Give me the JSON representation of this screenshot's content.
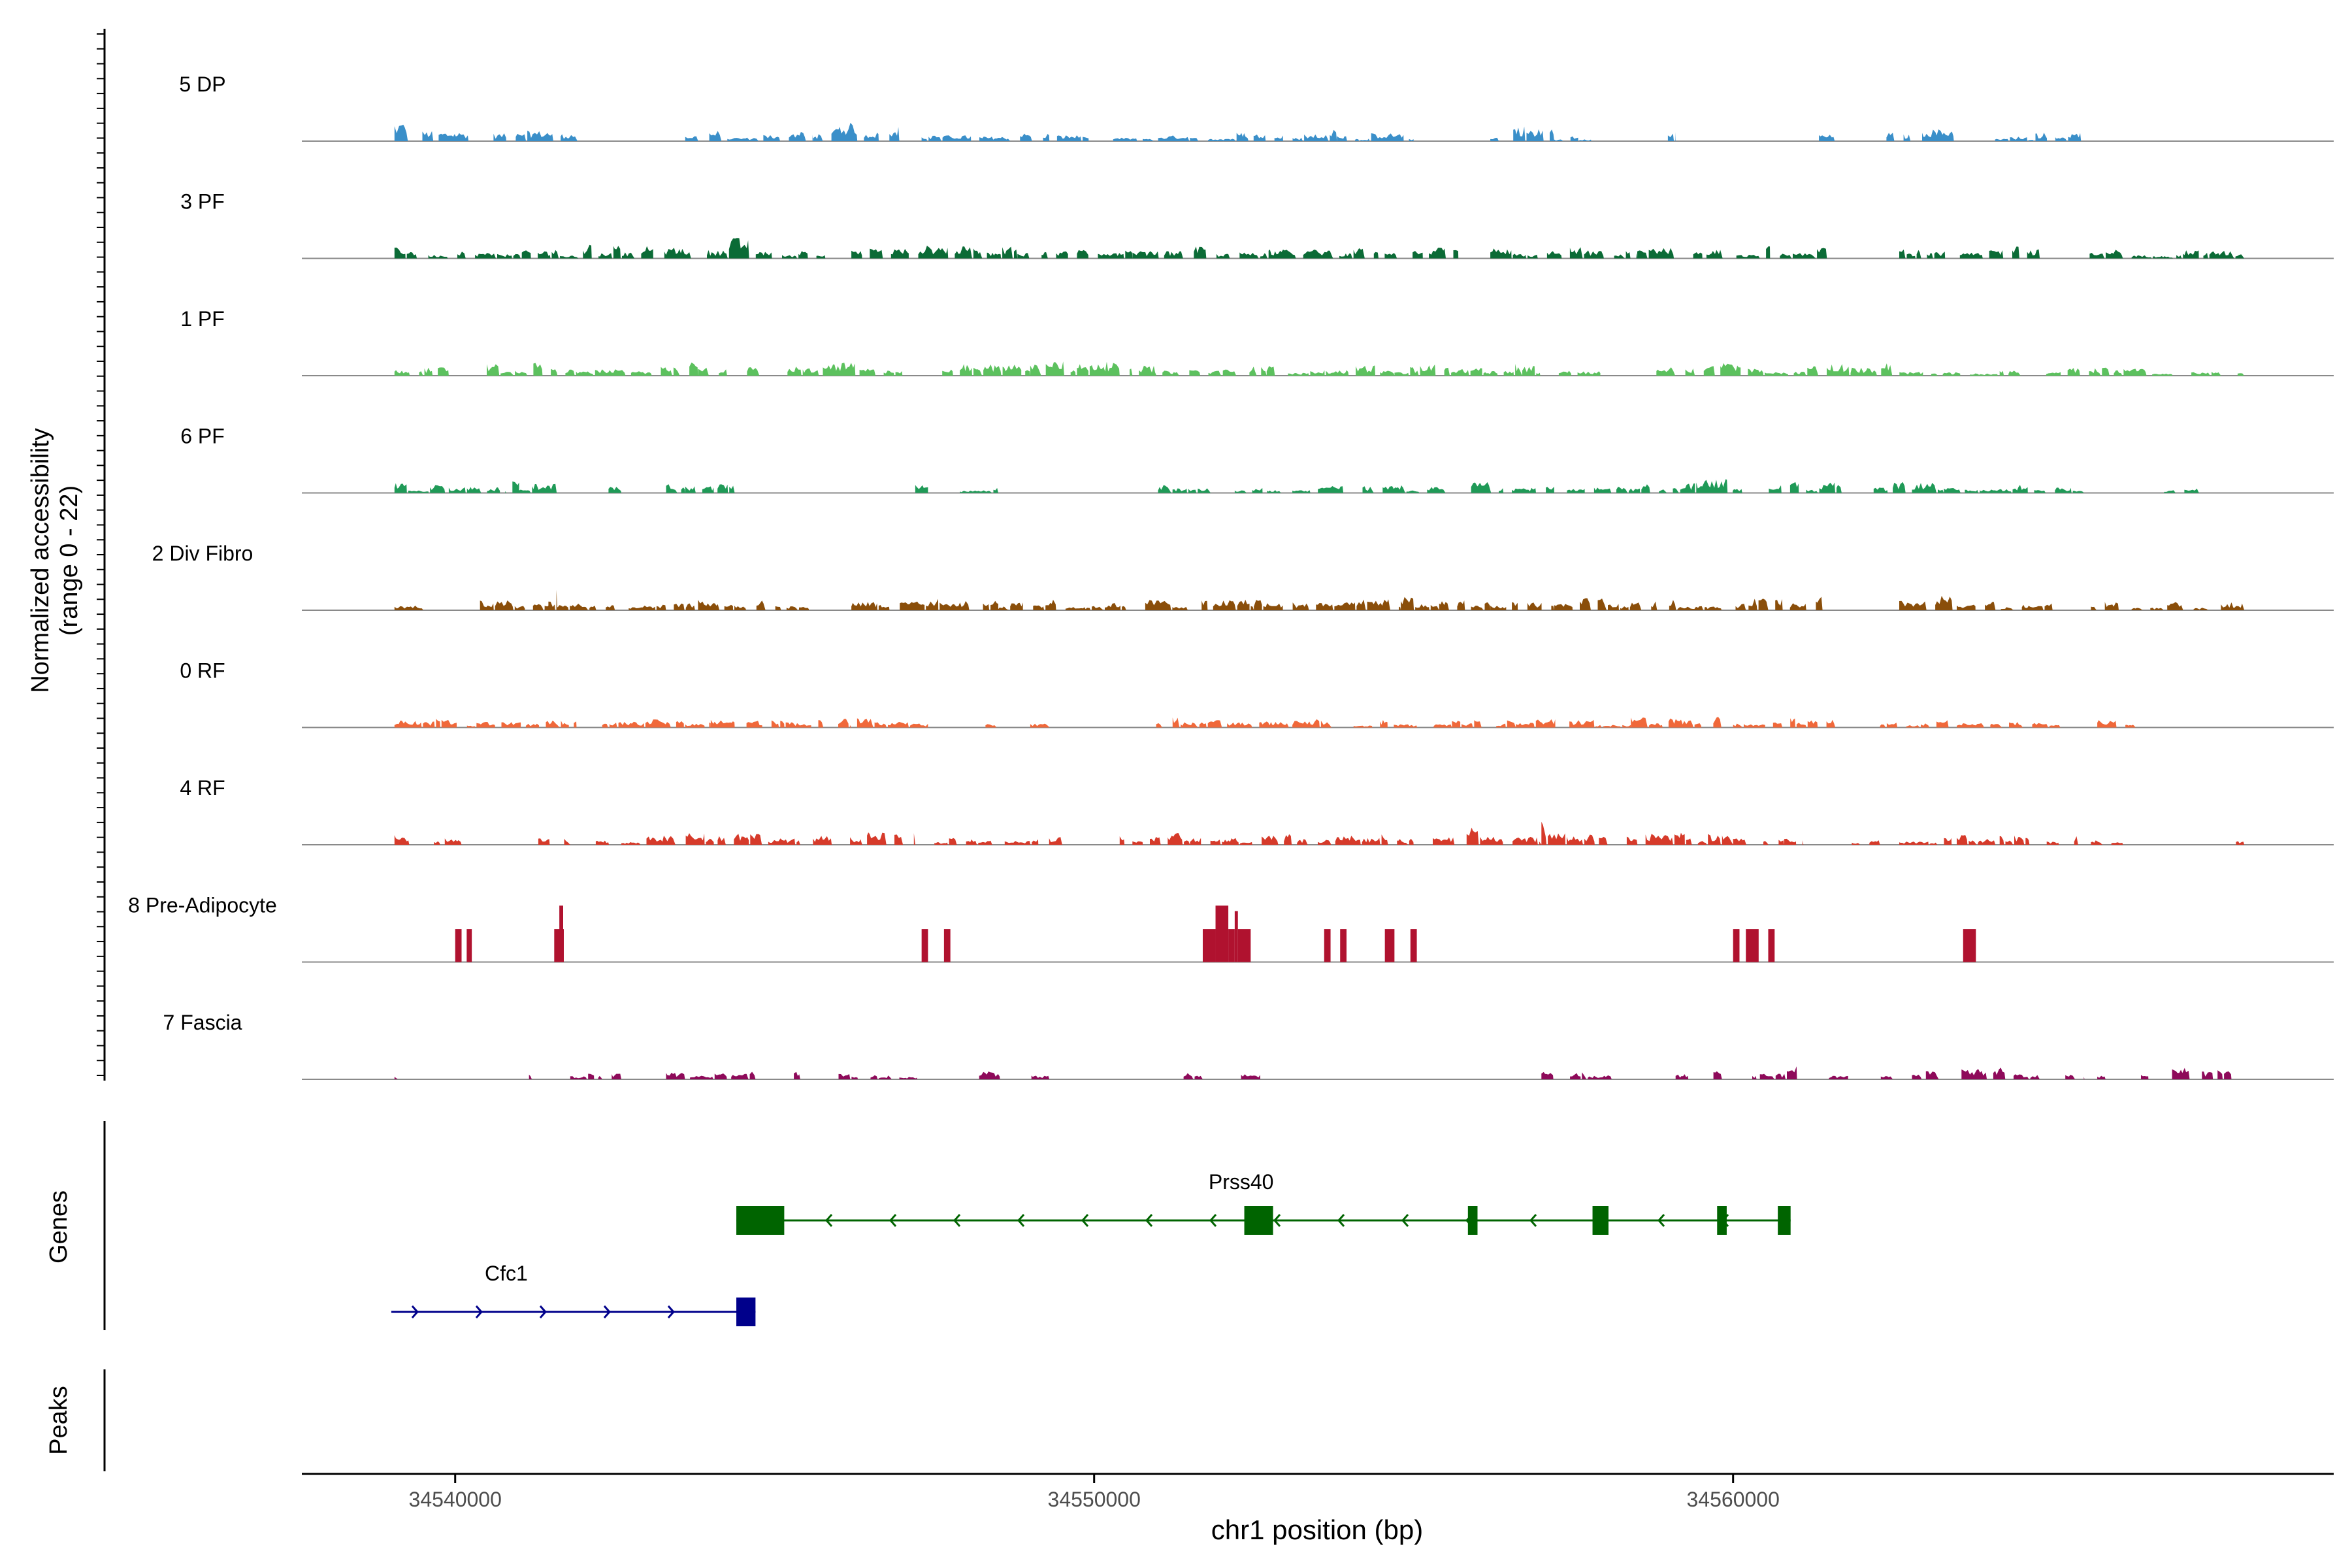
{
  "chart_data": {
    "type": "area",
    "title": "",
    "xlabel": "chr1 position (bp)",
    "ylabel_line1": "Normalized accessibility",
    "ylabel_line2": "(range 0 - 22)",
    "y_range": [
      0,
      22
    ],
    "x_range": [
      34537600,
      34569400
    ],
    "x_ticks": [
      34540000,
      34550000,
      34560000
    ],
    "x_tick_labels": [
      "34540000",
      "34550000",
      "34560000"
    ],
    "genes_label": "Genes",
    "peaks_label": "Peaks",
    "tracks": [
      {
        "name": "5 DP",
        "color": "#3a8fc9",
        "style": "dense",
        "regions": [
          [
            34539050,
            34540250,
            0.7
          ],
          [
            34540600,
            34542000,
            0.45
          ],
          [
            34543600,
            34545600,
            0.5
          ],
          [
            34545600,
            34547000,
            0.9
          ],
          [
            34547300,
            34549300,
            0.35
          ],
          [
            34549300,
            34551500,
            0.25
          ],
          [
            34551500,
            34553800,
            0.45
          ],
          [
            34553800,
            34555000,
            0.3
          ],
          [
            34556200,
            34557200,
            0.6
          ],
          [
            34557200,
            34557800,
            0.25
          ],
          [
            34558900,
            34559100,
            0.55
          ],
          [
            34561300,
            34561700,
            0.3
          ],
          [
            34562400,
            34563700,
            0.55
          ],
          [
            34564100,
            34565500,
            0.35
          ]
        ]
      },
      {
        "name": "3 PF",
        "color": "#0b6b36",
        "style": "dense",
        "regions": [
          [
            34539050,
            34542000,
            0.4
          ],
          [
            34542000,
            34543100,
            0.6
          ],
          [
            34543100,
            34544600,
            0.8
          ],
          [
            34544600,
            34545800,
            0.45
          ],
          [
            34546200,
            34548800,
            0.55
          ],
          [
            34548800,
            34550600,
            0.35
          ],
          [
            34550600,
            34552600,
            0.55
          ],
          [
            34552600,
            34555700,
            0.4
          ],
          [
            34556200,
            34558500,
            0.45
          ],
          [
            34558500,
            34561500,
            0.5
          ],
          [
            34562600,
            34564800,
            0.55
          ],
          [
            34565500,
            34568000,
            0.35
          ]
        ]
      },
      {
        "name": "1 PF",
        "color": "#5cc15e",
        "style": "dense",
        "regions": [
          [
            34539050,
            34539900,
            0.6
          ],
          [
            34540400,
            34543800,
            0.5
          ],
          [
            34543800,
            34544800,
            0.6
          ],
          [
            34545200,
            34547000,
            0.6
          ],
          [
            34547500,
            34549000,
            0.55
          ],
          [
            34549000,
            34550600,
            0.65
          ],
          [
            34550700,
            34552700,
            0.45
          ],
          [
            34552700,
            34554700,
            0.4
          ],
          [
            34554700,
            34556700,
            0.55
          ],
          [
            34556700,
            34558000,
            0.4
          ],
          [
            34558800,
            34563000,
            0.5
          ],
          [
            34563100,
            34564500,
            0.3
          ],
          [
            34564900,
            34568000,
            0.35
          ]
        ]
      },
      {
        "name": "6 PF",
        "color": "#1f9a57",
        "style": "dense",
        "regions": [
          [
            34539050,
            34539900,
            0.45
          ],
          [
            34539900,
            34540800,
            0.25
          ],
          [
            34540800,
            34541000,
            0.7
          ],
          [
            34541000,
            34541600,
            0.35
          ],
          [
            34542400,
            34542600,
            0.4
          ],
          [
            34543300,
            34543600,
            0.75
          ],
          [
            34543600,
            34544400,
            0.35
          ],
          [
            34547200,
            34547400,
            0.4
          ],
          [
            34547900,
            34548500,
            0.3
          ],
          [
            34551000,
            34552000,
            0.35
          ],
          [
            34552200,
            34553900,
            0.35
          ],
          [
            34554200,
            34555500,
            0.35
          ],
          [
            34555900,
            34557200,
            0.45
          ],
          [
            34557400,
            34558700,
            0.35
          ],
          [
            34558700,
            34561700,
            0.55
          ],
          [
            34562200,
            34562700,
            0.45
          ],
          [
            34562800,
            34563300,
            0.45
          ],
          [
            34563300,
            34565500,
            0.35
          ],
          [
            34566700,
            34567500,
            0.35
          ]
        ]
      },
      {
        "name": "2 Div Fibro",
        "color": "#8a4e0a",
        "style": "dense",
        "regions": [
          [
            34539050,
            34539500,
            0.55
          ],
          [
            34540300,
            34542500,
            0.45
          ],
          [
            34541400,
            34541600,
            0.95
          ],
          [
            34542500,
            34543800,
            0.35
          ],
          [
            34543800,
            34545100,
            0.5
          ],
          [
            34545100,
            34545600,
            0.3
          ],
          [
            34546200,
            34548500,
            0.45
          ],
          [
            34548500,
            34550500,
            0.4
          ],
          [
            34550800,
            34552500,
            0.45
          ],
          [
            34552500,
            34554800,
            0.5
          ],
          [
            34554800,
            34555400,
            0.55
          ],
          [
            34555400,
            34556200,
            0.45
          ],
          [
            34556200,
            34557200,
            0.4
          ],
          [
            34557200,
            34557600,
            0.85
          ],
          [
            34557600,
            34559000,
            0.5
          ],
          [
            34559000,
            34560200,
            0.55
          ],
          [
            34560200,
            34561400,
            0.7
          ],
          [
            34562600,
            34563500,
            0.85
          ],
          [
            34563500,
            34565000,
            0.4
          ],
          [
            34565600,
            34568000,
            0.35
          ]
        ]
      },
      {
        "name": "0 RF",
        "color": "#f0683a",
        "style": "dense",
        "regions": [
          [
            34539050,
            34541900,
            0.35
          ],
          [
            34542300,
            34544000,
            0.3
          ],
          [
            34544000,
            34546200,
            0.4
          ],
          [
            34546200,
            34547400,
            0.55
          ],
          [
            34548300,
            34548500,
            0.25
          ],
          [
            34549000,
            34549300,
            0.25
          ],
          [
            34550800,
            34552000,
            0.4
          ],
          [
            34552000,
            34553800,
            0.35
          ],
          [
            34554000,
            34555600,
            0.3
          ],
          [
            34555600,
            34556600,
            0.45
          ],
          [
            34556600,
            34558400,
            0.35
          ],
          [
            34558400,
            34560000,
            0.55
          ],
          [
            34560000,
            34561600,
            0.45
          ],
          [
            34562300,
            34563500,
            0.3
          ],
          [
            34563500,
            34565200,
            0.35
          ],
          [
            34565700,
            34566300,
            0.3
          ]
        ]
      },
      {
        "name": "4 RF",
        "color": "#d63a2a",
        "style": "dense",
        "regions": [
          [
            34539050,
            34539300,
            0.4
          ],
          [
            34539600,
            34540100,
            0.35
          ],
          [
            34541300,
            34541800,
            0.45
          ],
          [
            34542200,
            34543500,
            0.35
          ],
          [
            34543500,
            34544800,
            0.6
          ],
          [
            34544900,
            34545400,
            0.35
          ],
          [
            34545600,
            34547200,
            0.6
          ],
          [
            34547400,
            34548500,
            0.35
          ],
          [
            34548600,
            34549500,
            0.35
          ],
          [
            34550400,
            34551500,
            0.5
          ],
          [
            34551500,
            34553500,
            0.4
          ],
          [
            34553500,
            34554600,
            0.4
          ],
          [
            34554600,
            34555000,
            0.5
          ],
          [
            34555300,
            34556400,
            0.75
          ],
          [
            34556400,
            34557000,
            0.4
          ],
          [
            34557000,
            34557900,
            0.9
          ],
          [
            34557900,
            34560000,
            0.55
          ],
          [
            34560000,
            34560800,
            0.3
          ],
          [
            34560800,
            34561100,
            0.4
          ],
          [
            34561800,
            34562300,
            0.3
          ],
          [
            34562600,
            34563500,
            0.35
          ],
          [
            34563500,
            34565400,
            0.45
          ],
          [
            34565600,
            34566100,
            0.3
          ],
          [
            34567800,
            34568000,
            0.35
          ]
        ]
      },
      {
        "name": "8 Pre-Adipocyte",
        "color": "#b0122f",
        "style": "sparse",
        "blocks": [
          [
            34540000,
            34540100,
            0.42
          ],
          [
            34540180,
            34540260,
            0.42
          ],
          [
            34541550,
            34541700,
            0.42
          ],
          [
            34541630,
            34541690,
            0.72
          ],
          [
            34547300,
            34547400,
            0.42
          ],
          [
            34547650,
            34547750,
            0.42
          ],
          [
            34551700,
            34551900,
            0.42
          ],
          [
            34551900,
            34552100,
            0.72
          ],
          [
            34552100,
            34552200,
            0.42
          ],
          [
            34552200,
            34552250,
            0.65
          ],
          [
            34552250,
            34552450,
            0.42
          ],
          [
            34553600,
            34553700,
            0.42
          ],
          [
            34553850,
            34553950,
            0.42
          ],
          [
            34554550,
            34554700,
            0.42
          ],
          [
            34554950,
            34555050,
            0.42
          ],
          [
            34560000,
            34560100,
            0.42
          ],
          [
            34560200,
            34560400,
            0.42
          ],
          [
            34560550,
            34560650,
            0.42
          ],
          [
            34563600,
            34563800,
            0.42
          ]
        ]
      },
      {
        "name": "7 Fascia",
        "color": "#8e0a5a",
        "style": "dense",
        "regions": [
          [
            34539050,
            34539100,
            0.3
          ],
          [
            34541000,
            34541200,
            0.35
          ],
          [
            34541800,
            34542300,
            0.35
          ],
          [
            34542400,
            34542600,
            0.4
          ],
          [
            34543300,
            34544700,
            0.35
          ],
          [
            34545300,
            34545400,
            0.35
          ],
          [
            34546000,
            34546300,
            0.35
          ],
          [
            34546500,
            34547300,
            0.3
          ],
          [
            34548200,
            34548600,
            0.35
          ],
          [
            34548900,
            34549300,
            0.5
          ],
          [
            34551400,
            34551700,
            0.3
          ],
          [
            34552300,
            34552600,
            0.35
          ],
          [
            34557000,
            34558100,
            0.4
          ],
          [
            34559100,
            34559300,
            0.3
          ],
          [
            34559600,
            34559900,
            0.5
          ],
          [
            34560300,
            34561000,
            0.5
          ],
          [
            34561500,
            34561800,
            0.3
          ],
          [
            34562200,
            34562500,
            0.3
          ],
          [
            34562800,
            34564800,
            0.5
          ],
          [
            34565200,
            34565500,
            0.35
          ],
          [
            34565700,
            34565900,
            0.3
          ],
          [
            34566200,
            34566500,
            0.3
          ],
          [
            34566800,
            34567800,
            0.55
          ]
        ]
      }
    ],
    "genes": [
      {
        "name": "Prss40",
        "color": "#006400",
        "strand": "-",
        "row": 1,
        "start": 34544400,
        "end": 34560900,
        "exons": [
          [
            34544400,
            34545150
          ],
          [
            34552350,
            34552800
          ],
          [
            34555850,
            34556000
          ],
          [
            34557800,
            34558050
          ],
          [
            34559750,
            34559900
          ],
          [
            34560700,
            34560900
          ]
        ]
      },
      {
        "name": "Cfc1",
        "color": "#00008b",
        "strand": "+",
        "row": 2,
        "start": 34539000,
        "end": 34544700,
        "exons": [
          [
            34544400,
            34544700
          ]
        ]
      }
    ],
    "peaks": []
  }
}
